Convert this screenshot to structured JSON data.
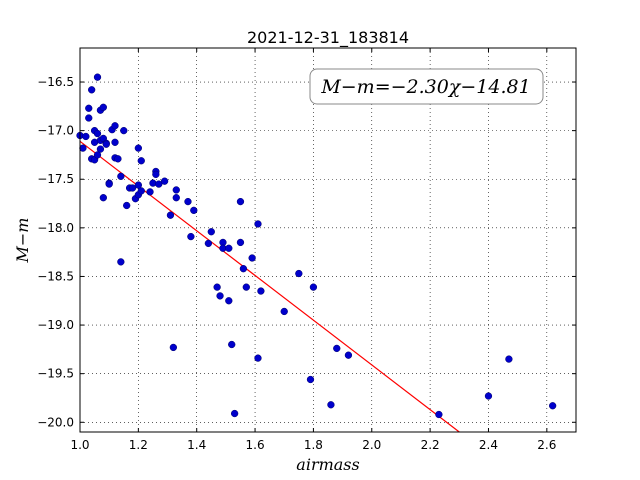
{
  "chart_data": {
    "type": "scatter",
    "title": "2021-12-31_183814",
    "xlabel": "airmass",
    "ylabel": "M−m",
    "xlim": [
      1.0,
      2.7
    ],
    "ylim": [
      -20.1,
      -16.15
    ],
    "grid": true,
    "x_ticks": [
      1.0,
      1.2,
      1.4,
      1.6,
      1.8,
      2.0,
      2.2,
      2.4,
      2.6
    ],
    "x_tick_labels": [
      "1.0",
      "1.2",
      "1.4",
      "1.6",
      "1.8",
      "2.0",
      "2.2",
      "2.4",
      "2.6"
    ],
    "y_ticks": [
      -16.5,
      -17.0,
      -17.5,
      -18.0,
      -18.5,
      -19.0,
      -19.5,
      -20.0
    ],
    "y_tick_labels": [
      "−16.5",
      "−17.0",
      "−17.5",
      "−18.0",
      "−18.5",
      "−19.0",
      "−19.5",
      "−20.0"
    ],
    "annotation": "M−m=−2.30χ−14.81",
    "fit": {
      "slope": -2.3,
      "intercept": -14.81,
      "color": "#ff0000"
    },
    "marker_color": "#0000cc",
    "points": [
      [
        1.0,
        -17.05
      ],
      [
        1.01,
        -17.18
      ],
      [
        1.02,
        -17.06
      ],
      [
        1.03,
        -16.87
      ],
      [
        1.03,
        -16.77
      ],
      [
        1.04,
        -16.58
      ],
      [
        1.04,
        -17.29
      ],
      [
        1.05,
        -17.0
      ],
      [
        1.05,
        -17.12
      ],
      [
        1.05,
        -17.3
      ],
      [
        1.06,
        -16.45
      ],
      [
        1.06,
        -17.25
      ],
      [
        1.06,
        -17.03
      ],
      [
        1.07,
        -17.19
      ],
      [
        1.07,
        -17.1
      ],
      [
        1.07,
        -16.79
      ],
      [
        1.08,
        -16.76
      ],
      [
        1.08,
        -17.08
      ],
      [
        1.08,
        -17.69
      ],
      [
        1.09,
        -17.13
      ],
      [
        1.09,
        -17.14
      ],
      [
        1.1,
        -17.54
      ],
      [
        1.1,
        -17.55
      ],
      [
        1.11,
        -16.99
      ],
      [
        1.12,
        -16.95
      ],
      [
        1.12,
        -17.28
      ],
      [
        1.12,
        -17.12
      ],
      [
        1.13,
        -17.29
      ],
      [
        1.14,
        -18.35
      ],
      [
        1.14,
        -17.47
      ],
      [
        1.15,
        -17.0
      ],
      [
        1.16,
        -17.77
      ],
      [
        1.17,
        -17.59
      ],
      [
        1.18,
        -17.59
      ],
      [
        1.19,
        -17.7
      ],
      [
        1.2,
        -17.66
      ],
      [
        1.2,
        -17.56
      ],
      [
        1.2,
        -17.18
      ],
      [
        1.21,
        -17.31
      ],
      [
        1.21,
        -17.62
      ],
      [
        1.24,
        -17.63
      ],
      [
        1.25,
        -17.54
      ],
      [
        1.26,
        -17.42
      ],
      [
        1.26,
        -17.45
      ],
      [
        1.27,
        -17.55
      ],
      [
        1.29,
        -17.52
      ],
      [
        1.31,
        -17.87
      ],
      [
        1.32,
        -19.23
      ],
      [
        1.33,
        -17.61
      ],
      [
        1.33,
        -17.69
      ],
      [
        1.37,
        -17.73
      ],
      [
        1.38,
        -18.09
      ],
      [
        1.39,
        -17.82
      ],
      [
        1.44,
        -18.16
      ],
      [
        1.45,
        -18.04
      ],
      [
        1.47,
        -18.61
      ],
      [
        1.48,
        -18.7
      ],
      [
        1.49,
        -18.15
      ],
      [
        1.49,
        -18.21
      ],
      [
        1.51,
        -18.75
      ],
      [
        1.51,
        -18.21
      ],
      [
        1.52,
        -19.2
      ],
      [
        1.53,
        -19.91
      ],
      [
        1.55,
        -17.73
      ],
      [
        1.55,
        -18.15
      ],
      [
        1.56,
        -18.42
      ],
      [
        1.57,
        -18.61
      ],
      [
        1.59,
        -18.31
      ],
      [
        1.61,
        -19.34
      ],
      [
        1.61,
        -17.96
      ],
      [
        1.62,
        -18.65
      ],
      [
        1.7,
        -18.86
      ],
      [
        1.75,
        -18.47
      ],
      [
        1.79,
        -19.56
      ],
      [
        1.8,
        -18.61
      ],
      [
        1.86,
        -19.82
      ],
      [
        1.88,
        -19.24
      ],
      [
        1.92,
        -19.31
      ],
      [
        2.23,
        -19.92
      ],
      [
        2.4,
        -19.73
      ],
      [
        2.47,
        -19.35
      ],
      [
        2.62,
        -19.83
      ]
    ]
  }
}
